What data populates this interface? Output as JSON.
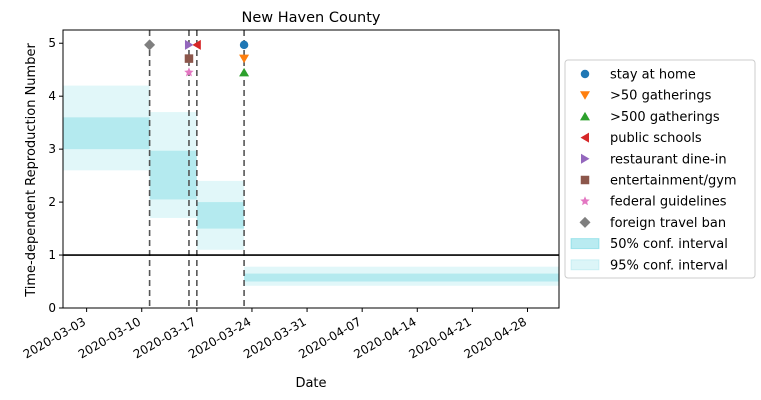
{
  "chart_data": {
    "type": "line",
    "title": "New Haven County",
    "xlabel": "Date",
    "ylabel": "Time-dependent Reproduction Number",
    "xlim": [
      "2020-02-29",
      "2020-05-02"
    ],
    "ylim": [
      0,
      5.25
    ],
    "x_ticks": [
      "2020-03-03",
      "2020-03-10",
      "2020-03-17",
      "2020-03-24",
      "2020-03-31",
      "2020-04-07",
      "2020-04-14",
      "2020-04-21",
      "2020-04-28"
    ],
    "y_ticks": [
      0,
      1,
      2,
      3,
      4,
      5
    ],
    "reference_line": {
      "y": 1,
      "color": "#000000"
    },
    "ci_color": "#17becf",
    "segments": [
      {
        "start": "2020-02-29",
        "end": "2020-03-11",
        "ci50": [
          3.0,
          3.6
        ],
        "ci95": [
          2.6,
          4.2
        ]
      },
      {
        "start": "2020-03-11",
        "end": "2020-03-16",
        "ci50": [
          2.05,
          2.97
        ],
        "ci95": [
          1.7,
          3.7
        ]
      },
      {
        "start": "2020-03-16",
        "end": "2020-03-17",
        "ci50": [
          2.05,
          2.97
        ],
        "ci95": [
          1.7,
          3.7
        ]
      },
      {
        "start": "2020-03-17",
        "end": "2020-03-23",
        "ci50": [
          1.5,
          2.0
        ],
        "ci95": [
          1.1,
          2.4
        ]
      },
      {
        "start": "2020-03-23",
        "end": "2020-05-02",
        "ci50": [
          0.5,
          0.65
        ],
        "ci95": [
          0.42,
          0.78
        ]
      }
    ],
    "interventions": [
      {
        "name": "stay at home",
        "date": "2020-03-23",
        "y": 4.97,
        "marker": "circle",
        "color": "#1f77b4"
      },
      {
        "name": ">50 gatherings",
        "date": "2020-03-23",
        "y": 4.71,
        "marker": "triangle-down",
        "color": "#ff7f0e"
      },
      {
        "name": ">500 gatherings",
        "date": "2020-03-23",
        "y": 4.45,
        "marker": "triangle-up",
        "color": "#2ca02c"
      },
      {
        "name": "public schools",
        "date": "2020-03-17",
        "y": 4.97,
        "marker": "triangle-left",
        "color": "#d62728"
      },
      {
        "name": "restaurant dine-in",
        "date": "2020-03-16",
        "y": 4.97,
        "marker": "triangle-right",
        "color": "#9467bd"
      },
      {
        "name": "entertainment/gym",
        "date": "2020-03-16",
        "y": 4.71,
        "marker": "square",
        "color": "#8c564b"
      },
      {
        "name": "federal guidelines",
        "date": "2020-03-16",
        "y": 4.45,
        "marker": "star",
        "color": "#e377c2"
      },
      {
        "name": "foreign travel ban",
        "date": "2020-03-11",
        "y": 4.97,
        "marker": "diamond",
        "color": "#7f7f7f"
      }
    ],
    "vlines": [
      "2020-03-11",
      "2020-03-16",
      "2020-03-17",
      "2020-03-23"
    ],
    "legend": {
      "placement": "right",
      "entries": [
        {
          "label": "stay at home",
          "marker": "circle",
          "color": "#1f77b4"
        },
        {
          "label": ">50 gatherings",
          "marker": "triangle-down",
          "color": "#ff7f0e"
        },
        {
          "label": ">500 gatherings",
          "marker": "triangle-up",
          "color": "#2ca02c"
        },
        {
          "label": "public schools",
          "marker": "triangle-left",
          "color": "#d62728"
        },
        {
          "label": "restaurant dine-in",
          "marker": "triangle-right",
          "color": "#9467bd"
        },
        {
          "label": "entertainment/gym",
          "marker": "square",
          "color": "#8c564b"
        },
        {
          "label": "federal guidelines",
          "marker": "star",
          "color": "#e377c2"
        },
        {
          "label": "foreign travel ban",
          "marker": "diamond",
          "color": "#7f7f7f"
        },
        {
          "label": "50% conf. interval",
          "marker": "patch50",
          "color": "#17becf"
        },
        {
          "label": "95% conf. interval",
          "marker": "patch95",
          "color": "#17becf"
        }
      ]
    }
  }
}
